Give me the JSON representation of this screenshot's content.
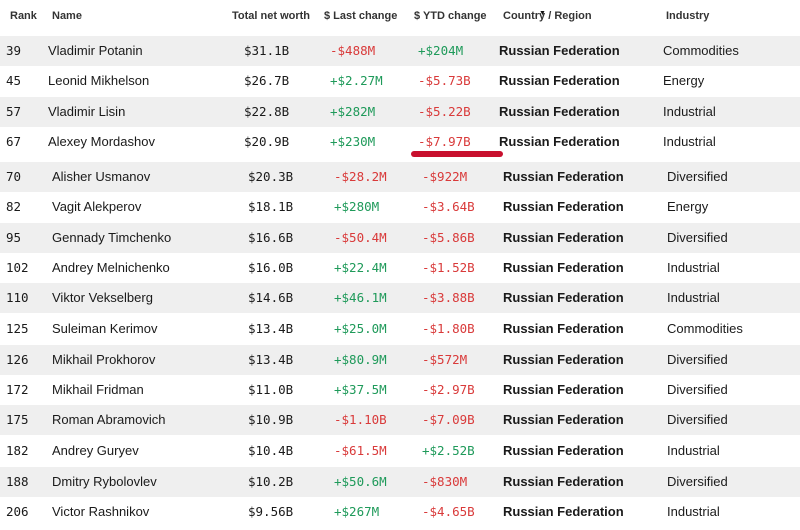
{
  "header": {
    "rank": "Rank",
    "name": "Name",
    "net_worth": "Total net worth",
    "last_change": "$ Last change",
    "ytd_change": "$ YTD change",
    "country": "Country / Region",
    "industry": "Industry"
  },
  "rows": [
    {
      "rank": "39",
      "name": "Vladimir Potanin",
      "net_worth": "$31.1B",
      "last_change": "-$488M",
      "ytd_change": "+$204M",
      "country": "Russian Federation",
      "industry": "Commodities"
    },
    {
      "rank": "45",
      "name": "Leonid Mikhelson",
      "net_worth": "$26.7B",
      "last_change": "+$2.27M",
      "ytd_change": "-$5.73B",
      "country": "Russian Federation",
      "industry": "Energy"
    },
    {
      "rank": "57",
      "name": "Vladimir Lisin",
      "net_worth": "$22.8B",
      "last_change": "+$282M",
      "ytd_change": "-$5.22B",
      "country": "Russian Federation",
      "industry": "Industrial"
    },
    {
      "rank": "67",
      "name": "Alexey Mordashov",
      "net_worth": "$20.9B",
      "last_change": "+$230M",
      "ytd_change": "-$7.97B",
      "country": "Russian Federation",
      "industry": "Industrial"
    },
    {
      "rank": "70",
      "name": "Alisher Usmanov",
      "net_worth": "$20.3B",
      "last_change": "-$28.2M",
      "ytd_change": "-$922M",
      "country": "Russian Federation",
      "industry": "Diversified"
    },
    {
      "rank": "82",
      "name": "Vagit Alekperov",
      "net_worth": "$18.1B",
      "last_change": "+$280M",
      "ytd_change": "-$3.64B",
      "country": "Russian Federation",
      "industry": "Energy"
    },
    {
      "rank": "95",
      "name": "Gennady Timchenko",
      "net_worth": "$16.6B",
      "last_change": "-$50.4M",
      "ytd_change": "-$5.86B",
      "country": "Russian Federation",
      "industry": "Diversified"
    },
    {
      "rank": "102",
      "name": "Andrey Melnichenko",
      "net_worth": "$16.0B",
      "last_change": "+$22.4M",
      "ytd_change": "-$1.52B",
      "country": "Russian Federation",
      "industry": "Industrial"
    },
    {
      "rank": "110",
      "name": "Viktor Vekselberg",
      "net_worth": "$14.6B",
      "last_change": "+$46.1M",
      "ytd_change": "-$3.88B",
      "country": "Russian Federation",
      "industry": "Industrial"
    },
    {
      "rank": "125",
      "name": "Suleiman Kerimov",
      "net_worth": "$13.4B",
      "last_change": "+$25.0M",
      "ytd_change": "-$1.80B",
      "country": "Russian Federation",
      "industry": "Commodities"
    },
    {
      "rank": "126",
      "name": "Mikhail Prokhorov",
      "net_worth": "$13.4B",
      "last_change": "+$80.9M",
      "ytd_change": "-$572M",
      "country": "Russian Federation",
      "industry": "Diversified"
    },
    {
      "rank": "172",
      "name": "Mikhail Fridman",
      "net_worth": "$11.0B",
      "last_change": "+$37.5M",
      "ytd_change": "-$2.97B",
      "country": "Russian Federation",
      "industry": "Diversified"
    },
    {
      "rank": "175",
      "name": "Roman Abramovich",
      "net_worth": "$10.9B",
      "last_change": "-$1.10B",
      "ytd_change": "-$7.09B",
      "country": "Russian Federation",
      "industry": "Diversified"
    },
    {
      "rank": "182",
      "name": "Andrey Guryev",
      "net_worth": "$10.4B",
      "last_change": "-$61.5M",
      "ytd_change": "+$2.52B",
      "country": "Russian Federation",
      "industry": "Industrial"
    },
    {
      "rank": "188",
      "name": "Dmitry Rybolovlev",
      "net_worth": "$10.2B",
      "last_change": "+$50.6M",
      "ytd_change": "-$830M",
      "country": "Russian Federation",
      "industry": "Diversified"
    },
    {
      "rank": "206",
      "name": "Victor Rashnikov",
      "net_worth": "$9.56B",
      "last_change": "+$267M",
      "ytd_change": "-$4.65B",
      "country": "Russian Federation",
      "industry": "Industrial"
    }
  ],
  "colors": {
    "negative": "#d93a3a",
    "positive": "#1f9a5a",
    "row_stripe": "#efefef",
    "highlight_mark": "#c8102e"
  }
}
